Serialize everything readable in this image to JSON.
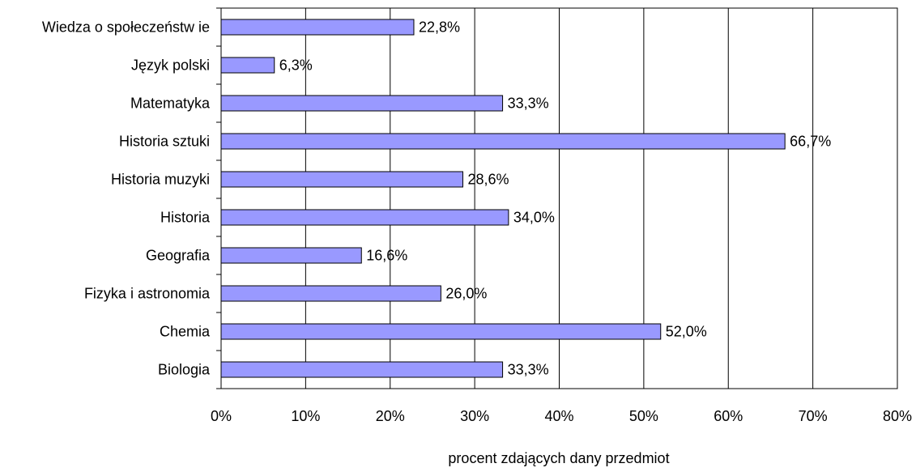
{
  "chart_data": {
    "type": "bar",
    "orientation": "horizontal",
    "title": "",
    "xlabel": "procent zdających dany przedmiot",
    "ylabel": "",
    "xlim": [
      0,
      80
    ],
    "x_ticks": [
      0,
      10,
      20,
      30,
      40,
      50,
      60,
      70,
      80
    ],
    "x_tick_labels": [
      "0%",
      "10%",
      "20%",
      "30%",
      "40%",
      "50%",
      "60%",
      "70%",
      "80%"
    ],
    "grid": "vertical",
    "legend": "none",
    "categories": [
      "Wiedza o społeczeństw ie",
      "Język polski",
      "Matematyka",
      "Historia sztuki",
      "Historia muzyki",
      "Historia",
      "Geografia",
      "Fizyka i astronomia",
      "Chemia",
      "Biologia"
    ],
    "values": [
      22.8,
      6.3,
      33.3,
      66.7,
      28.6,
      34.0,
      16.6,
      26.0,
      52.0,
      33.3
    ],
    "value_labels": [
      "22,8%",
      "6,3%",
      "33,3%",
      "66,7%",
      "28,6%",
      "34,0%",
      "16,6%",
      "26,0%",
      "52,0%",
      "33,3%"
    ],
    "bar_color": "#9999ff",
    "bar_edge_color": "#000000",
    "gridline_color": "#000000"
  }
}
